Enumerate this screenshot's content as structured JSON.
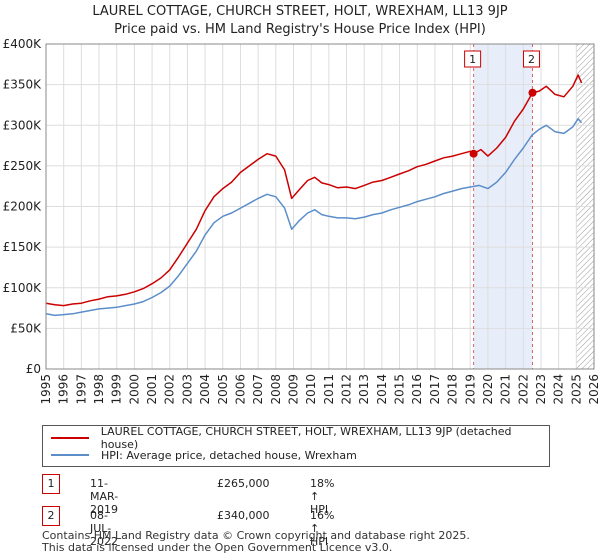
{
  "title_line1": "LAUREL COTTAGE, CHURCH STREET, HOLT, WREXHAM, LL13 9JP",
  "title_line2": "Price paid vs. HM Land Registry's House Price Index (HPI)",
  "colors": {
    "property": "#cc0000",
    "hpi": "#5b8ec9",
    "shade": "#e8eef9",
    "grid": "#dddddd"
  },
  "chart_data": {
    "type": "line",
    "title": "Price paid vs. HM Land Registry's House Price Index (HPI)",
    "xlabel": "",
    "ylabel": "",
    "xlim": [
      1995,
      2026
    ],
    "ylim": [
      0,
      400000
    ],
    "x_ticks": [
      "1995",
      "1996",
      "1997",
      "1998",
      "1999",
      "2000",
      "2001",
      "2002",
      "2003",
      "2004",
      "2005",
      "2006",
      "2007",
      "2008",
      "2009",
      "2010",
      "2011",
      "2012",
      "2013",
      "2014",
      "2015",
      "2016",
      "2017",
      "2018",
      "2019",
      "2020",
      "2021",
      "2022",
      "2023",
      "2024",
      "2025",
      "2026"
    ],
    "y_ticks": [
      {
        "value": 0,
        "label": "£0"
      },
      {
        "value": 50000,
        "label": "£50K"
      },
      {
        "value": 100000,
        "label": "£100K"
      },
      {
        "value": 150000,
        "label": "£150K"
      },
      {
        "value": 200000,
        "label": "£200K"
      },
      {
        "value": 250000,
        "label": "£250K"
      },
      {
        "value": 300000,
        "label": "£300K"
      },
      {
        "value": 350000,
        "label": "£350K"
      },
      {
        "value": 400000,
        "label": "£400K"
      }
    ],
    "shaded_period": [
      2019.19,
      2022.52
    ],
    "future_hatch_from": 2025.0,
    "series": [
      {
        "name": "LAUREL COTTAGE, CHURCH STREET, HOLT, WREXHAM, LL13 9JP (detached house)",
        "color": "#cc0000",
        "points": [
          [
            1995,
            81000
          ],
          [
            1995.5,
            79000
          ],
          [
            1996,
            78000
          ],
          [
            1996.5,
            80000
          ],
          [
            1997,
            81000
          ],
          [
            1997.5,
            84000
          ],
          [
            1998,
            86000
          ],
          [
            1998.5,
            89000
          ],
          [
            1999,
            90000
          ],
          [
            1999.5,
            92000
          ],
          [
            2000,
            95000
          ],
          [
            2000.5,
            99000
          ],
          [
            2001,
            105000
          ],
          [
            2001.5,
            112000
          ],
          [
            2002,
            122000
          ],
          [
            2002.5,
            138000
          ],
          [
            2003,
            155000
          ],
          [
            2003.5,
            172000
          ],
          [
            2004,
            195000
          ],
          [
            2004.5,
            212000
          ],
          [
            2005,
            222000
          ],
          [
            2005.5,
            230000
          ],
          [
            2006,
            242000
          ],
          [
            2006.5,
            250000
          ],
          [
            2007,
            258000
          ],
          [
            2007.5,
            265000
          ],
          [
            2008,
            262000
          ],
          [
            2008.5,
            245000
          ],
          [
            2008.9,
            210000
          ],
          [
            2009.3,
            220000
          ],
          [
            2009.8,
            232000
          ],
          [
            2010.2,
            236000
          ],
          [
            2010.6,
            229000
          ],
          [
            2011,
            227000
          ],
          [
            2011.5,
            223000
          ],
          [
            2012,
            224000
          ],
          [
            2012.5,
            222000
          ],
          [
            2013,
            226000
          ],
          [
            2013.5,
            230000
          ],
          [
            2014,
            232000
          ],
          [
            2014.5,
            236000
          ],
          [
            2015,
            240000
          ],
          [
            2015.5,
            244000
          ],
          [
            2016,
            249000
          ],
          [
            2016.5,
            252000
          ],
          [
            2017,
            256000
          ],
          [
            2017.5,
            260000
          ],
          [
            2018,
            262000
          ],
          [
            2018.5,
            265000
          ],
          [
            2019,
            268000
          ],
          [
            2019.19,
            265000
          ],
          [
            2019.6,
            270000
          ],
          [
            2020,
            262000
          ],
          [
            2020.5,
            272000
          ],
          [
            2021,
            285000
          ],
          [
            2021.5,
            305000
          ],
          [
            2022,
            320000
          ],
          [
            2022.52,
            340000
          ],
          [
            2022.9,
            342000
          ],
          [
            2023.3,
            348000
          ],
          [
            2023.8,
            338000
          ],
          [
            2024.3,
            335000
          ],
          [
            2024.8,
            348000
          ],
          [
            2025.1,
            362000
          ],
          [
            2025.3,
            352000
          ]
        ]
      },
      {
        "name": "HPI: Average price, detached house, Wrexham",
        "color": "#5b8ec9",
        "points": [
          [
            1995,
            68000
          ],
          [
            1995.5,
            66000
          ],
          [
            1996,
            67000
          ],
          [
            1996.5,
            68000
          ],
          [
            1997,
            70000
          ],
          [
            1997.5,
            72000
          ],
          [
            1998,
            74000
          ],
          [
            1998.5,
            75000
          ],
          [
            1999,
            76000
          ],
          [
            1999.5,
            78000
          ],
          [
            2000,
            80000
          ],
          [
            2000.5,
            83000
          ],
          [
            2001,
            88000
          ],
          [
            2001.5,
            94000
          ],
          [
            2002,
            102000
          ],
          [
            2002.5,
            115000
          ],
          [
            2003,
            130000
          ],
          [
            2003.5,
            145000
          ],
          [
            2004,
            165000
          ],
          [
            2004.5,
            180000
          ],
          [
            2005,
            188000
          ],
          [
            2005.5,
            192000
          ],
          [
            2006,
            198000
          ],
          [
            2006.5,
            204000
          ],
          [
            2007,
            210000
          ],
          [
            2007.5,
            215000
          ],
          [
            2008,
            212000
          ],
          [
            2008.5,
            198000
          ],
          [
            2008.9,
            172000
          ],
          [
            2009.3,
            182000
          ],
          [
            2009.8,
            192000
          ],
          [
            2010.2,
            196000
          ],
          [
            2010.6,
            190000
          ],
          [
            2011,
            188000
          ],
          [
            2011.5,
            186000
          ],
          [
            2012,
            186000
          ],
          [
            2012.5,
            185000
          ],
          [
            2013,
            187000
          ],
          [
            2013.5,
            190000
          ],
          [
            2014,
            192000
          ],
          [
            2014.5,
            196000
          ],
          [
            2015,
            199000
          ],
          [
            2015.5,
            202000
          ],
          [
            2016,
            206000
          ],
          [
            2016.5,
            209000
          ],
          [
            2017,
            212000
          ],
          [
            2017.5,
            216000
          ],
          [
            2018,
            219000
          ],
          [
            2018.5,
            222000
          ],
          [
            2019,
            224000
          ],
          [
            2019.5,
            226000
          ],
          [
            2020,
            222000
          ],
          [
            2020.5,
            230000
          ],
          [
            2021,
            242000
          ],
          [
            2021.5,
            258000
          ],
          [
            2022,
            272000
          ],
          [
            2022.5,
            288000
          ],
          [
            2022.9,
            295000
          ],
          [
            2023.3,
            300000
          ],
          [
            2023.8,
            292000
          ],
          [
            2024.3,
            290000
          ],
          [
            2024.8,
            298000
          ],
          [
            2025.1,
            308000
          ],
          [
            2025.3,
            303000
          ]
        ]
      }
    ],
    "sales": [
      {
        "label": "1",
        "date": "11-MAR-2019",
        "x": 2019.19,
        "price": 265000,
        "price_label": "£265,000",
        "hpi": "18% ↑ HPI"
      },
      {
        "label": "2",
        "date": "08-JUL-2022",
        "x": 2022.52,
        "price": 340000,
        "price_label": "£340,000",
        "hpi": "16% ↑ HPI"
      }
    ]
  },
  "legend": {
    "property": "LAUREL COTTAGE, CHURCH STREET, HOLT, WREXHAM, LL13 9JP (detached house)",
    "hpi": "HPI: Average price, detached house, Wrexham"
  },
  "footer_line1": "Contains HM Land Registry data © Crown copyright and database right 2025.",
  "footer_line2": "This data is licensed under the Open Government Licence v3.0."
}
